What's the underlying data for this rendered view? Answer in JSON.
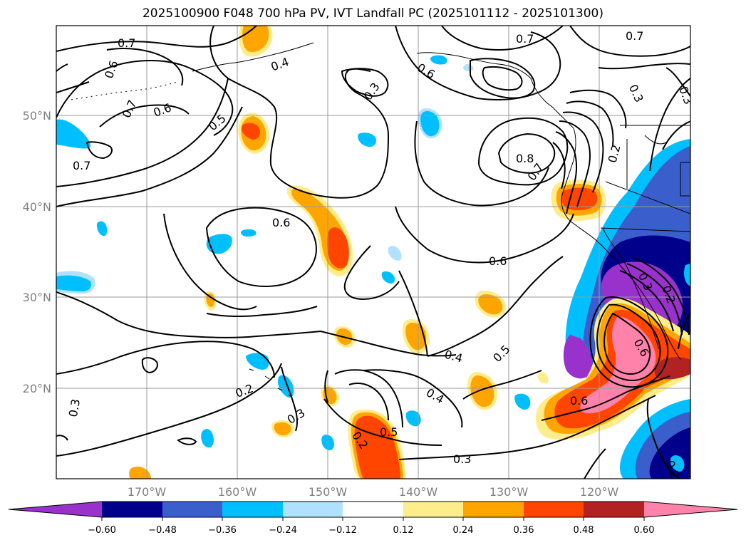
{
  "title": "2025100900 F048 700 hPa PV, IVT Landfall PC (2025101112 - 2025101300)",
  "map": {
    "lat_labels": [
      "50°N",
      "40°N",
      "30°N",
      "20°N"
    ],
    "lon_labels": [
      "170°W",
      "160°W",
      "150°W",
      "140°W",
      "130°W",
      "120°W"
    ],
    "contour_labels": [
      "0.7",
      "0.6",
      "0.7",
      "0.7",
      "0.6",
      "0.5",
      "0.4",
      "0.3",
      "0.6",
      "0.7",
      "0.7",
      "0.8",
      "0.7",
      "0.6",
      "0.6",
      "0.3",
      "0.2",
      "0.4",
      "0.5",
      "0.4",
      "0.2",
      "0.3",
      "0.3",
      "0.2",
      "0.5",
      "0.6",
      "0.3",
      "0.2",
      "0.6",
      "0.2",
      "0.3",
      "0.3"
    ]
  },
  "colorbar": {
    "ticks": [
      "−0.60",
      "−0.48",
      "−0.36",
      "−0.24",
      "−0.12",
      "0.12",
      "0.24",
      "0.36",
      "0.48",
      "0.60"
    ],
    "colors": [
      "#9932cc",
      "#00008b",
      "#3a5fcd",
      "#00bfff",
      "#b0e2ff",
      "#ffffff",
      "#ffec8b",
      "#ffa500",
      "#ff4500",
      "#b22222",
      "#ff82ab"
    ]
  }
}
